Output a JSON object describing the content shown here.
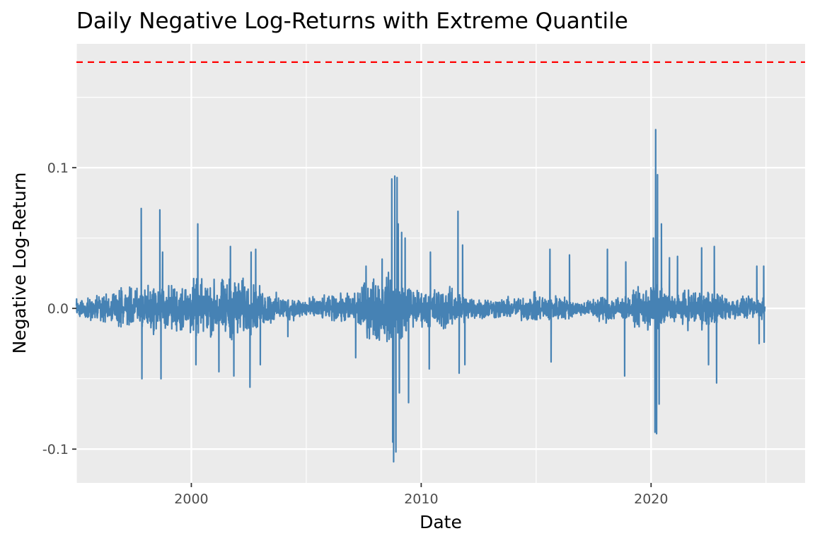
{
  "chart_data": {
    "type": "line",
    "title": "Daily Negative Log-Returns with Extreme Quantile",
    "xlabel": "Date",
    "ylabel": "Negative Log-Return",
    "xlim": [
      1995.0,
      2026.7
    ],
    "ylim": [
      -0.124,
      0.188
    ],
    "x_ticks": [
      {
        "value": 2000,
        "label": "2000"
      },
      {
        "value": 2010,
        "label": "2010"
      },
      {
        "value": 2020,
        "label": "2020"
      }
    ],
    "y_ticks": [
      {
        "value": -0.1,
        "label": "-0.1"
      },
      {
        "value": 0.0,
        "label": "0.0"
      },
      {
        "value": 0.1,
        "label": "0.1"
      }
    ],
    "grid": true,
    "series": [
      {
        "type": "line",
        "color": "#4682b4",
        "x_start": 1995.0,
        "x_end": 2024.95,
        "baseline_band": [
          [
            1995.0,
            0.007
          ],
          [
            1996.0,
            0.009
          ],
          [
            1997.0,
            0.013
          ],
          [
            1998.0,
            0.018
          ],
          [
            1999.0,
            0.017
          ],
          [
            2000.0,
            0.021
          ],
          [
            2001.0,
            0.021
          ],
          [
            2002.0,
            0.024
          ],
          [
            2003.0,
            0.015
          ],
          [
            2004.0,
            0.009
          ],
          [
            2005.0,
            0.008
          ],
          [
            2006.0,
            0.009
          ],
          [
            2007.0,
            0.012
          ],
          [
            2008.0,
            0.026
          ],
          [
            2009.0,
            0.024
          ],
          [
            2010.0,
            0.013
          ],
          [
            2011.0,
            0.017
          ],
          [
            2012.0,
            0.01
          ],
          [
            2013.0,
            0.008
          ],
          [
            2014.0,
            0.008
          ],
          [
            2015.0,
            0.011
          ],
          [
            2016.0,
            0.01
          ],
          [
            2017.0,
            0.005
          ],
          [
            2018.0,
            0.011
          ],
          [
            2019.0,
            0.009
          ],
          [
            2020.0,
            0.02
          ],
          [
            2021.0,
            0.01
          ],
          [
            2022.0,
            0.016
          ],
          [
            2023.0,
            0.011
          ],
          [
            2024.0,
            0.008
          ],
          [
            2024.95,
            0.008
          ]
        ],
        "spikes": [
          [
            1997.82,
            0.071
          ],
          [
            1997.85,
            -0.05
          ],
          [
            1998.63,
            0.07
          ],
          [
            1998.68,
            -0.05
          ],
          [
            1998.75,
            0.04
          ],
          [
            2000.28,
            0.06
          ],
          [
            2000.2,
            -0.04
          ],
          [
            2001.2,
            -0.045
          ],
          [
            2001.7,
            0.044
          ],
          [
            2001.85,
            -0.048
          ],
          [
            2002.55,
            -0.056
          ],
          [
            2002.8,
            0.042
          ],
          [
            2002.6,
            0.04
          ],
          [
            2003.0,
            -0.04
          ],
          [
            2004.2,
            -0.02
          ],
          [
            2007.15,
            -0.035
          ],
          [
            2007.6,
            0.03
          ],
          [
            2008.3,
            0.035
          ],
          [
            2008.72,
            0.092
          ],
          [
            2008.76,
            -0.095
          ],
          [
            2008.8,
            -0.109
          ],
          [
            2008.85,
            0.094
          ],
          [
            2008.9,
            -0.102
          ],
          [
            2008.95,
            0.093
          ],
          [
            2009.0,
            0.06
          ],
          [
            2009.05,
            -0.06
          ],
          [
            2009.15,
            0.054
          ],
          [
            2009.3,
            0.05
          ],
          [
            2009.45,
            -0.067
          ],
          [
            2010.35,
            -0.043
          ],
          [
            2010.4,
            0.04
          ],
          [
            2011.6,
            0.069
          ],
          [
            2011.65,
            -0.046
          ],
          [
            2011.8,
            0.045
          ],
          [
            2011.9,
            -0.04
          ],
          [
            2015.6,
            0.042
          ],
          [
            2015.65,
            -0.038
          ],
          [
            2016.45,
            0.038
          ],
          [
            2018.1,
            0.042
          ],
          [
            2018.85,
            -0.048
          ],
          [
            2018.9,
            0.033
          ],
          [
            2020.1,
            0.05
          ],
          [
            2020.17,
            -0.088
          ],
          [
            2020.2,
            0.127
          ],
          [
            2020.24,
            -0.089
          ],
          [
            2020.28,
            0.095
          ],
          [
            2020.35,
            -0.068
          ],
          [
            2020.45,
            0.06
          ],
          [
            2020.8,
            0.036
          ],
          [
            2021.15,
            0.037
          ],
          [
            2022.2,
            0.043
          ],
          [
            2022.5,
            -0.04
          ],
          [
            2022.75,
            0.044
          ],
          [
            2022.85,
            -0.053
          ],
          [
            2024.6,
            0.03
          ],
          [
            2024.7,
            -0.025
          ],
          [
            2024.9,
            0.03
          ],
          [
            2024.92,
            -0.024
          ]
        ]
      },
      {
        "type": "hline",
        "y": 0.175,
        "color": "#ff0000",
        "dash": true
      }
    ]
  }
}
